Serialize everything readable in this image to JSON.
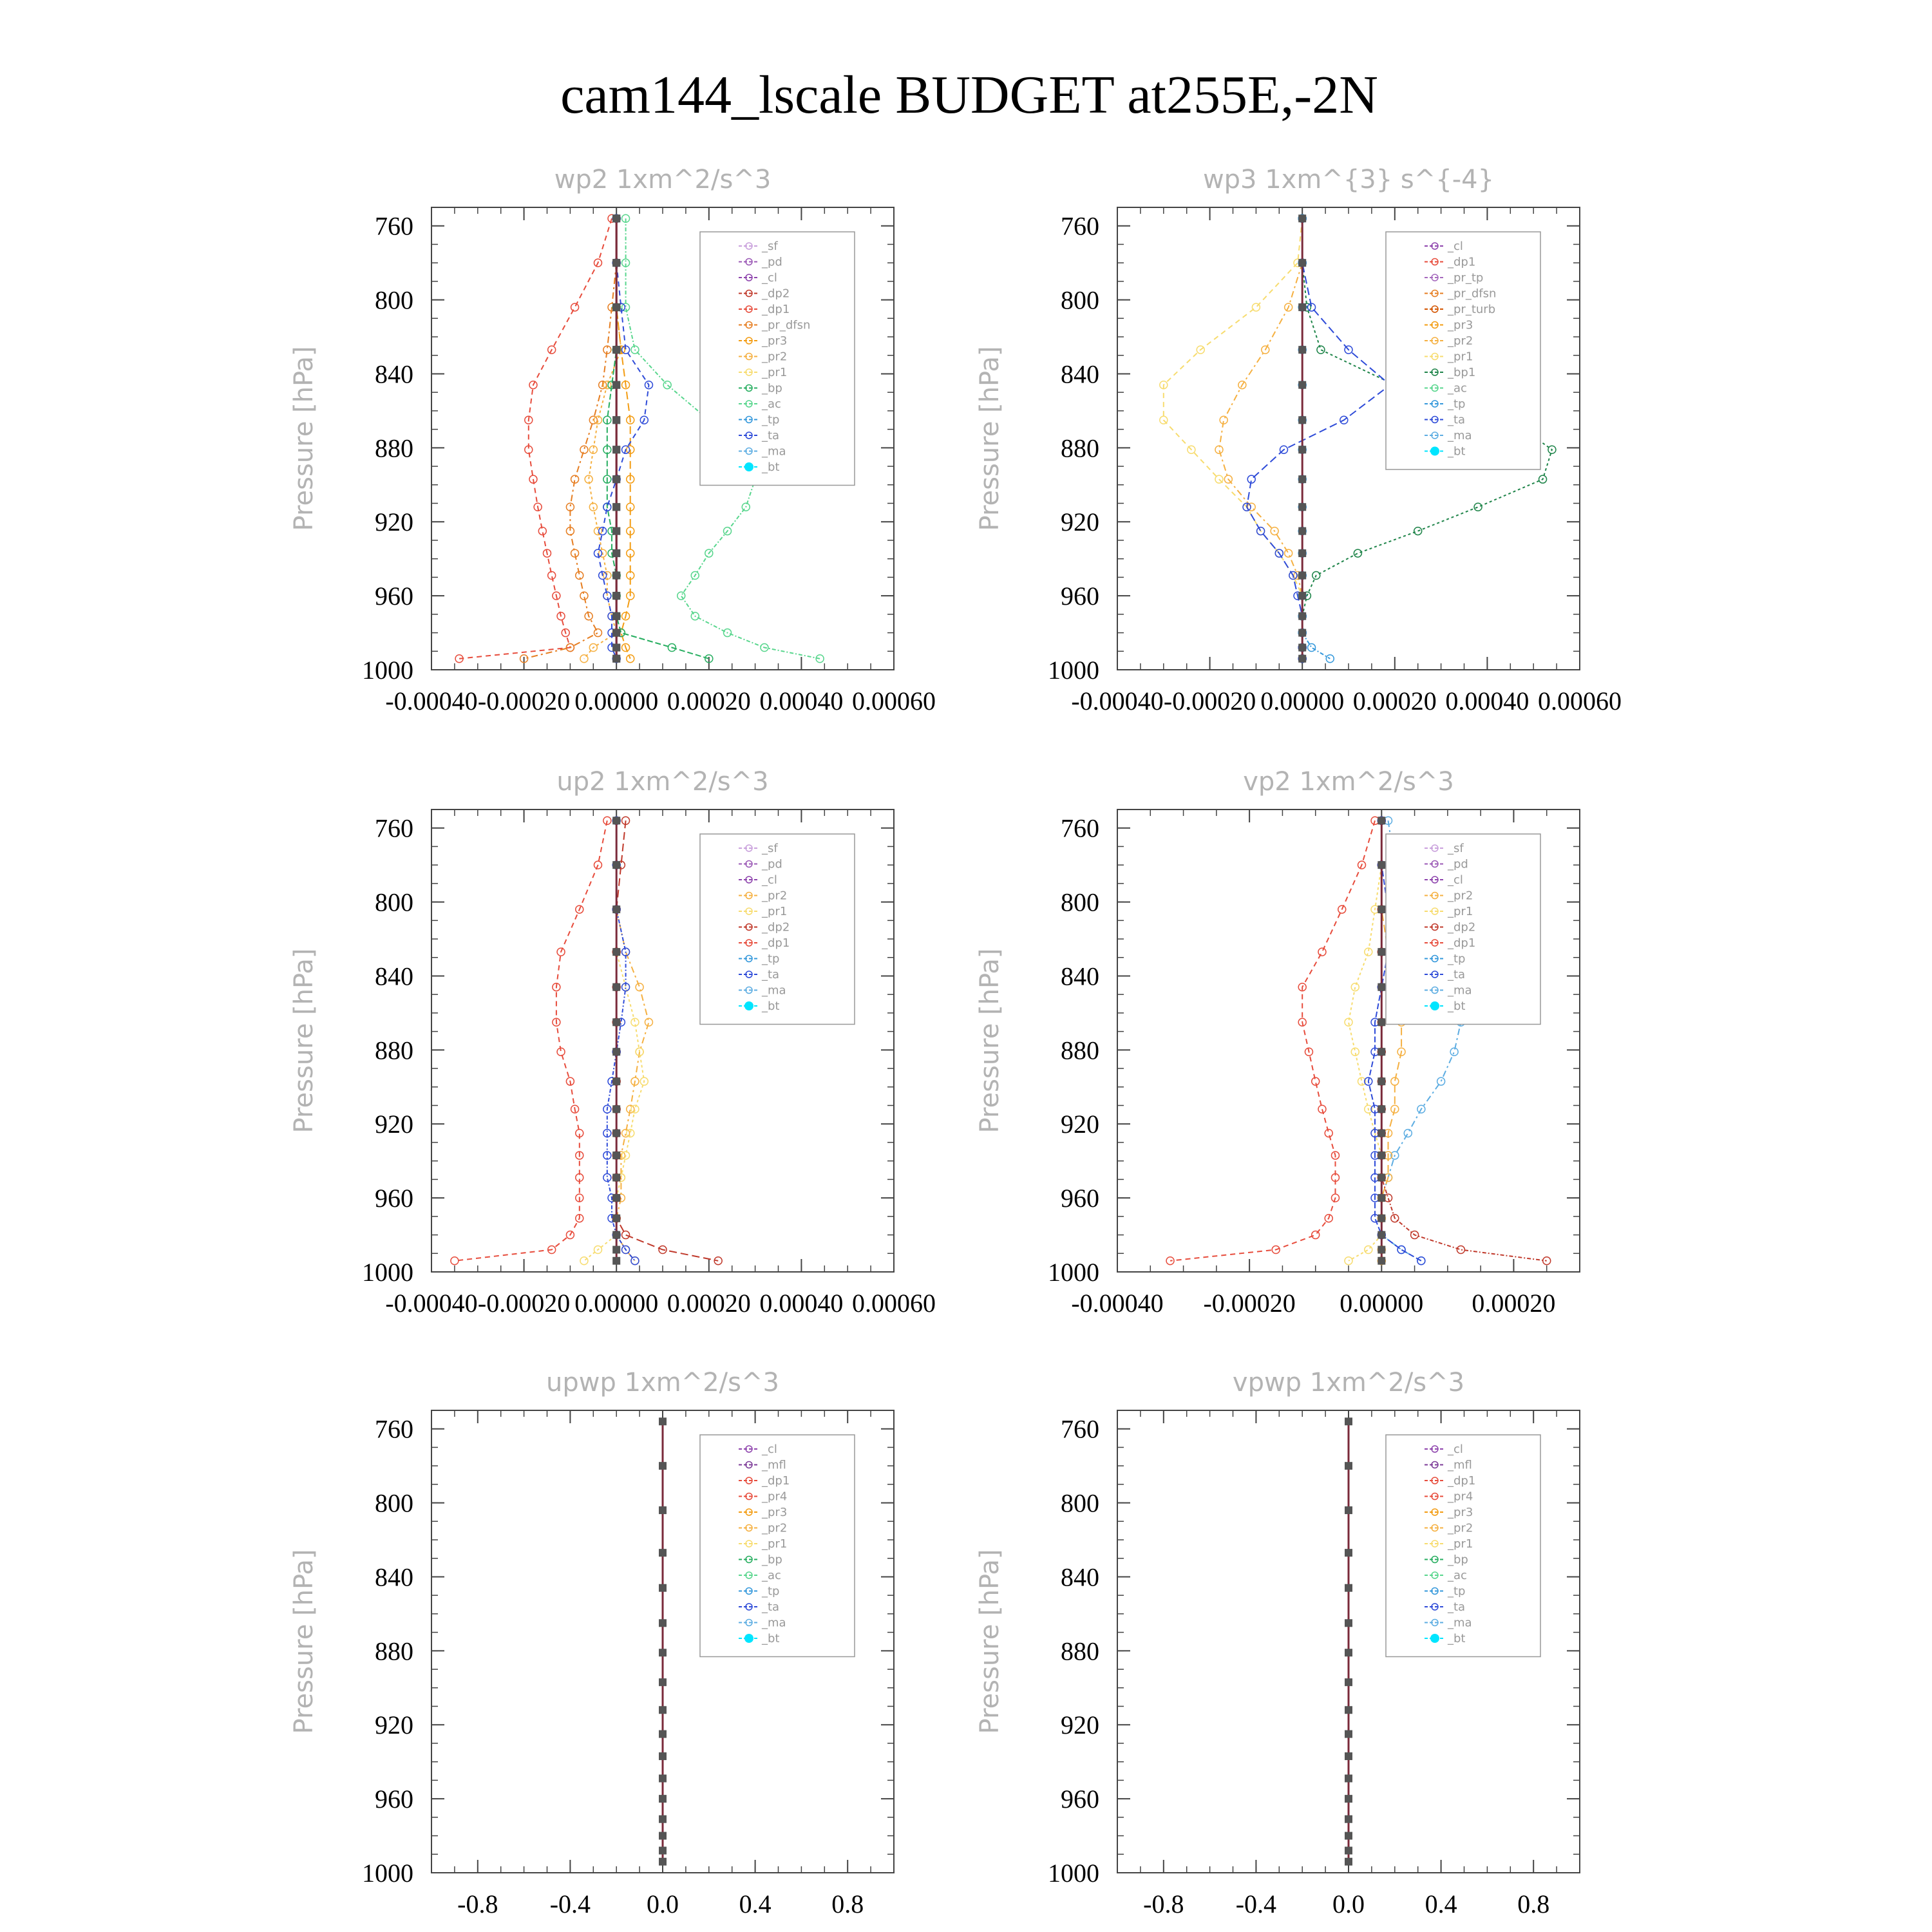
{
  "figure_title": "cam144_lscale  BUDGET at255E,-2N",
  "colors": {
    "_sf": "#c9a0dc",
    "_pd": "#9b59b6",
    "_cl": "#8e44ad",
    "_dp2": "#c0392b",
    "_dp1": "#e74c3c",
    "_pr_dfsn": "#e67e22",
    "_pr3": "#f39c12",
    "_pr2": "#f5b041",
    "_pr1": "#f7dc6f",
    "_bp": "#27ae60",
    "_ac": "#58d68d",
    "_tp": "#3498db",
    "_ta": "#2e4bd8",
    "_ma": "#5dade2",
    "_bt": "#00e5ff",
    "_pr_tp": "#a569bd",
    "_pr_turb": "#d35400",
    "_bp1": "#1e8449",
    "_mfl": "#7d3c98",
    "_pr4": "#e74c3c"
  },
  "chart_data": [
    {
      "type": "line",
      "title": "wp2   1xm^2/s^3",
      "ylabel": "Pressure [hPa]",
      "xlabel": "",
      "xlim": [
        -0.0004,
        0.0006
      ],
      "ylim": [
        1000,
        750
      ],
      "xticks": [
        "-0.00040",
        "-0.00020",
        "0.00000",
        "0.00020",
        "0.00040",
        "0.00060"
      ],
      "xtick_values": [
        -0.0004,
        -0.0002,
        0.0,
        0.0002,
        0.0004,
        0.0006
      ],
      "yticks": [
        "760",
        "800",
        "840",
        "880",
        "920",
        "960",
        "1000"
      ],
      "ytick_values": [
        760,
        800,
        840,
        880,
        920,
        960,
        1000
      ],
      "legend": [
        "_sf",
        "_pd",
        "_cl",
        "_dp2",
        "_dp1",
        "_pr_dfsn",
        "_pr3",
        "_pr2",
        "_pr1",
        "_bp",
        "_ac",
        "_tp",
        "_ta",
        "_ma",
        "_bt"
      ],
      "levels": [
        756,
        780,
        804,
        827,
        846,
        865,
        881,
        897,
        912,
        925,
        937,
        949,
        960,
        971,
        980,
        988,
        994
      ],
      "series": [
        {
          "name": "_dp1",
          "values": [
            -1e-05,
            -4e-05,
            -9e-05,
            -0.00014,
            -0.00018,
            -0.00019,
            -0.00019,
            -0.00018,
            -0.00017,
            -0.00016,
            -0.00015,
            -0.00014,
            -0.00013,
            -0.00012,
            -0.00011,
            -0.0001,
            -0.00034
          ]
        },
        {
          "name": "_pr_dfsn",
          "values": [
            0.0,
            0.0,
            -1e-05,
            -2e-05,
            -3e-05,
            -5e-05,
            -7e-05,
            -9e-05,
            -0.0001,
            -0.0001,
            -9e-05,
            -8e-05,
            -7e-05,
            -6e-05,
            -4e-05,
            -0.0001,
            -0.0002
          ]
        },
        {
          "name": "_pr2",
          "values": [
            0.0,
            0.0,
            0.0,
            1e-05,
            -2e-05,
            -4e-05,
            -5e-05,
            -6e-05,
            -5e-05,
            -4e-05,
            -3e-05,
            -2e-05,
            -2e-05,
            -1e-05,
            0.0,
            -5e-05,
            -7e-05
          ]
        },
        {
          "name": "_pr3",
          "values": [
            0.0,
            0.0,
            0.0,
            1e-05,
            2e-05,
            3e-05,
            3e-05,
            3e-05,
            3e-05,
            3e-05,
            3e-05,
            3e-05,
            3e-05,
            2e-05,
            1e-05,
            2e-05,
            3e-05
          ]
        },
        {
          "name": "_ac",
          "values": [
            2e-05,
            2e-05,
            2e-05,
            4e-05,
            0.00011,
            0.0002,
            0.00027,
            0.0003,
            0.00028,
            0.00024,
            0.0002,
            0.00017,
            0.00014,
            0.00017,
            0.00024,
            0.00032,
            0.00044
          ]
        },
        {
          "name": "_bp",
          "values": [
            0.0,
            0.0,
            0.0,
            0.0,
            -1e-05,
            -2e-05,
            -2e-05,
            -2e-05,
            -2e-05,
            -1e-05,
            -1e-05,
            0.0,
            0.0,
            0.0,
            1e-05,
            0.00012,
            0.0002
          ]
        },
        {
          "name": "_ta",
          "values": [
            0.0,
            0.0,
            1e-05,
            2e-05,
            7e-05,
            6e-05,
            2e-05,
            0.0,
            -2e-05,
            -3e-05,
            -4e-05,
            -3e-05,
            -2e-05,
            -1e-05,
            -1e-05,
            -1e-05,
            0.0
          ]
        },
        {
          "name": "_tp",
          "values": [
            0.0,
            0.0,
            0.0,
            0.0,
            0.0,
            0.0,
            0.0,
            0.0,
            0.0,
            0.0,
            0.0,
            0.0,
            0.0,
            0.0,
            0.0,
            0.0,
            0.0
          ]
        },
        {
          "name": "_bt",
          "values": [
            0.0,
            0.0,
            0.0,
            0.0,
            0.0,
            0.0,
            0.0,
            0.0,
            0.0,
            0.0,
            0.0,
            0.0,
            0.0,
            0.0,
            0.0,
            0.0,
            0.0
          ]
        }
      ]
    },
    {
      "type": "line",
      "title": "wp3   1xm^{3} s^{-4}",
      "ylabel": "Pressure [hPa]",
      "xlabel": "",
      "xlim": [
        -0.0004,
        0.0006
      ],
      "ylim": [
        1000,
        750
      ],
      "xticks": [
        "-0.00040",
        "-0.00020",
        "0.00000",
        "0.00020",
        "0.00040",
        "0.00060"
      ],
      "xtick_values": [
        -0.0004,
        -0.0002,
        0.0,
        0.0002,
        0.0004,
        0.0006
      ],
      "yticks": [
        "760",
        "800",
        "840",
        "880",
        "920",
        "960",
        "1000"
      ],
      "ytick_values": [
        760,
        800,
        840,
        880,
        920,
        960,
        1000
      ],
      "legend": [
        "_cl",
        "_dp1",
        "_pr_tp",
        "_pr_dfsn",
        "_pr_turb",
        "_pr3",
        "_pr2",
        "_pr1",
        "_bp1",
        "_ac",
        "_tp",
        "_ta",
        "_ma",
        "_bt"
      ],
      "levels": [
        756,
        780,
        804,
        827,
        846,
        865,
        881,
        897,
        912,
        925,
        937,
        949,
        960,
        971,
        980,
        988,
        994
      ],
      "series": [
        {
          "name": "_pr1",
          "values": [
            0.0,
            -1e-05,
            -0.0001,
            -0.00022,
            -0.0003,
            -0.0003,
            -0.00024,
            -0.00018,
            -0.00012,
            -9e-05,
            -5e-05,
            -2e-05,
            0.0,
            0.0,
            0.0,
            0.0,
            0.0
          ]
        },
        {
          "name": "_pr2",
          "values": [
            0.0,
            0.0,
            -3e-05,
            -8e-05,
            -0.00013,
            -0.00017,
            -0.00018,
            -0.00016,
            -0.00011,
            -6e-05,
            -3e-05,
            -1e-05,
            0.0,
            0.0,
            0.0,
            0.0,
            0.0
          ]
        },
        {
          "name": "_bp1",
          "values": [
            0.0,
            0.0,
            1e-05,
            4e-05,
            0.0002,
            0.00045,
            0.00054,
            0.00052,
            0.00038,
            0.00025,
            0.00012,
            3e-05,
            1e-05,
            0.0,
            0.0,
            0.0,
            0.0
          ]
        },
        {
          "name": "_ta",
          "values": [
            0.0,
            0.0,
            2e-05,
            0.0001,
            0.00019,
            9e-05,
            -4e-05,
            -0.00011,
            -0.00012,
            -9e-05,
            -5e-05,
            -2e-05,
            -1e-05,
            0.0,
            0.0,
            0.0,
            0.0
          ]
        },
        {
          "name": "_tp",
          "values": [
            0.0,
            0.0,
            0.0,
            0.0,
            0.0,
            0.0,
            0.0,
            0.0,
            0.0,
            0.0,
            0.0,
            0.0,
            0.0,
            0.0,
            0.0,
            2e-05,
            6e-05
          ]
        },
        {
          "name": "_bt",
          "values": [
            0.0,
            0.0,
            0.0,
            0.0,
            0.0,
            0.0,
            0.0,
            0.0,
            0.0,
            0.0,
            0.0,
            0.0,
            0.0,
            0.0,
            0.0,
            0.0,
            0.0
          ]
        }
      ]
    },
    {
      "type": "line",
      "title": "up2   1xm^2/s^3",
      "ylabel": "Pressure [hPa]",
      "xlabel": "",
      "xlim": [
        -0.0004,
        0.0006
      ],
      "ylim": [
        1000,
        750
      ],
      "xticks": [
        "-0.00040",
        "-0.00020",
        "0.00000",
        "0.00020",
        "0.00040",
        "0.00060"
      ],
      "xtick_values": [
        -0.0004,
        -0.0002,
        0.0,
        0.0002,
        0.0004,
        0.0006
      ],
      "yticks": [
        "760",
        "800",
        "840",
        "880",
        "920",
        "960",
        "1000"
      ],
      "ytick_values": [
        760,
        800,
        840,
        880,
        920,
        960,
        1000
      ],
      "legend": [
        "_sf",
        "_pd",
        "_cl",
        "_pr2",
        "_pr1",
        "_dp2",
        "_dp1",
        "_tp",
        "_ta",
        "_ma",
        "_bt"
      ],
      "levels": [
        756,
        780,
        804,
        827,
        846,
        865,
        881,
        897,
        912,
        925,
        937,
        949,
        960,
        971,
        980,
        988,
        994
      ],
      "series": [
        {
          "name": "_dp1",
          "values": [
            -2e-05,
            -4e-05,
            -8e-05,
            -0.00012,
            -0.00013,
            -0.00013,
            -0.00012,
            -0.0001,
            -9e-05,
            -8e-05,
            -8e-05,
            -8e-05,
            -8e-05,
            -8e-05,
            -0.0001,
            -0.00014,
            -0.00035
          ]
        },
        {
          "name": "_pr2",
          "values": [
            0.0,
            0.0,
            0.0,
            2e-05,
            5e-05,
            7e-05,
            5e-05,
            4e-05,
            3e-05,
            2e-05,
            1e-05,
            1e-05,
            1e-05,
            0.0,
            0.0,
            2e-05,
            4e-05
          ]
        },
        {
          "name": "_pr1",
          "values": [
            0.0,
            0.0,
            0.0,
            0.0,
            2e-05,
            4e-05,
            5e-05,
            6e-05,
            4e-05,
            3e-05,
            2e-05,
            1e-05,
            0.0,
            0.0,
            0.0,
            -4e-05,
            -7e-05
          ]
        },
        {
          "name": "_dp2",
          "values": [
            2e-05,
            1e-05,
            0.0,
            0.0,
            0.0,
            0.0,
            0.0,
            0.0,
            0.0,
            0.0,
            0.0,
            0.0,
            0.0,
            0.0,
            2e-05,
            0.0001,
            0.00022
          ]
        },
        {
          "name": "_ta",
          "values": [
            0.0,
            0.0,
            0.0,
            2e-05,
            2e-05,
            1e-05,
            0.0,
            -1e-05,
            -2e-05,
            -2e-05,
            -2e-05,
            -2e-05,
            -1e-05,
            -1e-05,
            0.0,
            2e-05,
            4e-05
          ]
        },
        {
          "name": "_bt",
          "values": [
            0.0,
            0.0,
            0.0,
            0.0,
            0.0,
            0.0,
            0.0,
            0.0,
            0.0,
            0.0,
            0.0,
            0.0,
            0.0,
            0.0,
            0.0,
            0.0,
            0.0
          ]
        }
      ]
    },
    {
      "type": "line",
      "title": "vp2   1xm^2/s^3",
      "ylabel": "Pressure [hPa]",
      "xlabel": "",
      "xlim": [
        -0.0004,
        0.0003
      ],
      "ylim": [
        1000,
        750
      ],
      "xticks": [
        "-0.00040",
        "-0.00020",
        "0.00000",
        "0.00020"
      ],
      "xtick_values": [
        -0.0004,
        -0.0002,
        0.0,
        0.0002
      ],
      "yticks": [
        "760",
        "800",
        "840",
        "880",
        "920",
        "960",
        "1000"
      ],
      "ytick_values": [
        760,
        800,
        840,
        880,
        920,
        960,
        1000
      ],
      "legend": [
        "_sf",
        "_pd",
        "_cl",
        "_pr2",
        "_pr1",
        "_dp2",
        "_dp1",
        "_tp",
        "_ta",
        "_ma",
        "_bt"
      ],
      "levels": [
        756,
        780,
        804,
        827,
        846,
        865,
        881,
        897,
        912,
        925,
        937,
        949,
        960,
        971,
        980,
        988,
        994
      ],
      "series": [
        {
          "name": "_dp1",
          "values": [
            -1e-05,
            -3e-05,
            -6e-05,
            -9e-05,
            -0.00012,
            -0.00012,
            -0.00011,
            -0.0001,
            -9e-05,
            -8e-05,
            -7e-05,
            -7e-05,
            -7e-05,
            -8e-05,
            -0.0001,
            -0.00016,
            -0.00032
          ]
        },
        {
          "name": "_ma",
          "values": [
            1e-05,
            2e-05,
            5e-05,
            8e-05,
            0.0001,
            0.00012,
            0.00011,
            9e-05,
            6e-05,
            4e-05,
            2e-05,
            1e-05,
            0.0,
            0.0,
            0.0,
            3e-05,
            6e-05
          ]
        },
        {
          "name": "_pr1",
          "values": [
            0.0,
            0.0,
            -1e-05,
            -2e-05,
            -4e-05,
            -5e-05,
            -4e-05,
            -3e-05,
            -2e-05,
            -1e-05,
            0.0,
            0.0,
            0.0,
            0.0,
            0.0,
            -2e-05,
            -5e-05
          ]
        },
        {
          "name": "_pr2",
          "values": [
            0.0,
            0.0,
            0.0,
            1e-05,
            2e-05,
            3e-05,
            3e-05,
            2e-05,
            2e-05,
            1e-05,
            1e-05,
            1e-05,
            0.0,
            0.0,
            0.0,
            0.0,
            0.0
          ]
        },
        {
          "name": "_dp2",
          "values": [
            0.0,
            0.0,
            0.0,
            0.0,
            0.0,
            0.0,
            0.0,
            0.0,
            0.0,
            0.0,
            0.0,
            0.0,
            1e-05,
            2e-05,
            5e-05,
            0.00012,
            0.00025
          ]
        },
        {
          "name": "_ta",
          "values": [
            0.0,
            0.0,
            1e-05,
            1e-05,
            0.0,
            -1e-05,
            -1e-05,
            -2e-05,
            -1e-05,
            -1e-05,
            -1e-05,
            -1e-05,
            -1e-05,
            -1e-05,
            0.0,
            3e-05,
            6e-05
          ]
        },
        {
          "name": "_bt",
          "values": [
            0.0,
            0.0,
            0.0,
            0.0,
            0.0,
            0.0,
            0.0,
            0.0,
            0.0,
            0.0,
            0.0,
            0.0,
            0.0,
            0.0,
            0.0,
            0.0,
            0.0
          ]
        }
      ]
    },
    {
      "type": "line",
      "title": "upwp   1xm^2/s^3",
      "ylabel": "Pressure [hPa]",
      "xlabel": "",
      "xlim": [
        -1.0,
        1.0
      ],
      "ylim": [
        1000,
        750
      ],
      "xticks": [
        "-0.8",
        "-0.4",
        "0.0",
        "0.4",
        "0.8"
      ],
      "xtick_values": [
        -0.8,
        -0.4,
        0.0,
        0.4,
        0.8
      ],
      "yticks": [
        "760",
        "800",
        "840",
        "880",
        "920",
        "960",
        "1000"
      ],
      "ytick_values": [
        760,
        800,
        840,
        880,
        920,
        960,
        1000
      ],
      "legend": [
        "_cl",
        "_mfl",
        "_dp1",
        "_pr4",
        "_pr3",
        "_pr2",
        "_pr1",
        "_bp",
        "_ac",
        "_tp",
        "_ta",
        "_ma",
        "_bt"
      ],
      "levels": [
        756,
        780,
        804,
        827,
        846,
        865,
        881,
        897,
        912,
        925,
        937,
        949,
        960,
        971,
        980,
        988,
        994
      ],
      "series": [
        {
          "name": "_bt",
          "values": [
            0,
            0,
            0,
            0,
            0,
            0,
            0,
            0,
            0,
            0,
            0,
            0,
            0,
            0,
            0,
            0,
            0
          ]
        }
      ]
    },
    {
      "type": "line",
      "title": "vpwp   1xm^2/s^3",
      "ylabel": "Pressure [hPa]",
      "xlabel": "",
      "xlim": [
        -1.0,
        1.0
      ],
      "ylim": [
        1000,
        750
      ],
      "xticks": [
        "-0.8",
        "-0.4",
        "0.0",
        "0.4",
        "0.8"
      ],
      "xtick_values": [
        -0.8,
        -0.4,
        0.0,
        0.4,
        0.8
      ],
      "yticks": [
        "760",
        "800",
        "840",
        "880",
        "920",
        "960",
        "1000"
      ],
      "ytick_values": [
        760,
        800,
        840,
        880,
        920,
        960,
        1000
      ],
      "legend": [
        "_cl",
        "_mfl",
        "_dp1",
        "_pr4",
        "_pr3",
        "_pr2",
        "_pr1",
        "_bp",
        "_ac",
        "_tp",
        "_ta",
        "_ma",
        "_bt"
      ],
      "levels": [
        756,
        780,
        804,
        827,
        846,
        865,
        881,
        897,
        912,
        925,
        937,
        949,
        960,
        971,
        980,
        988,
        994
      ],
      "series": [
        {
          "name": "_bt",
          "values": [
            0,
            0,
            0,
            0,
            0,
            0,
            0,
            0,
            0,
            0,
            0,
            0,
            0,
            0,
            0,
            0,
            0
          ]
        }
      ]
    }
  ]
}
